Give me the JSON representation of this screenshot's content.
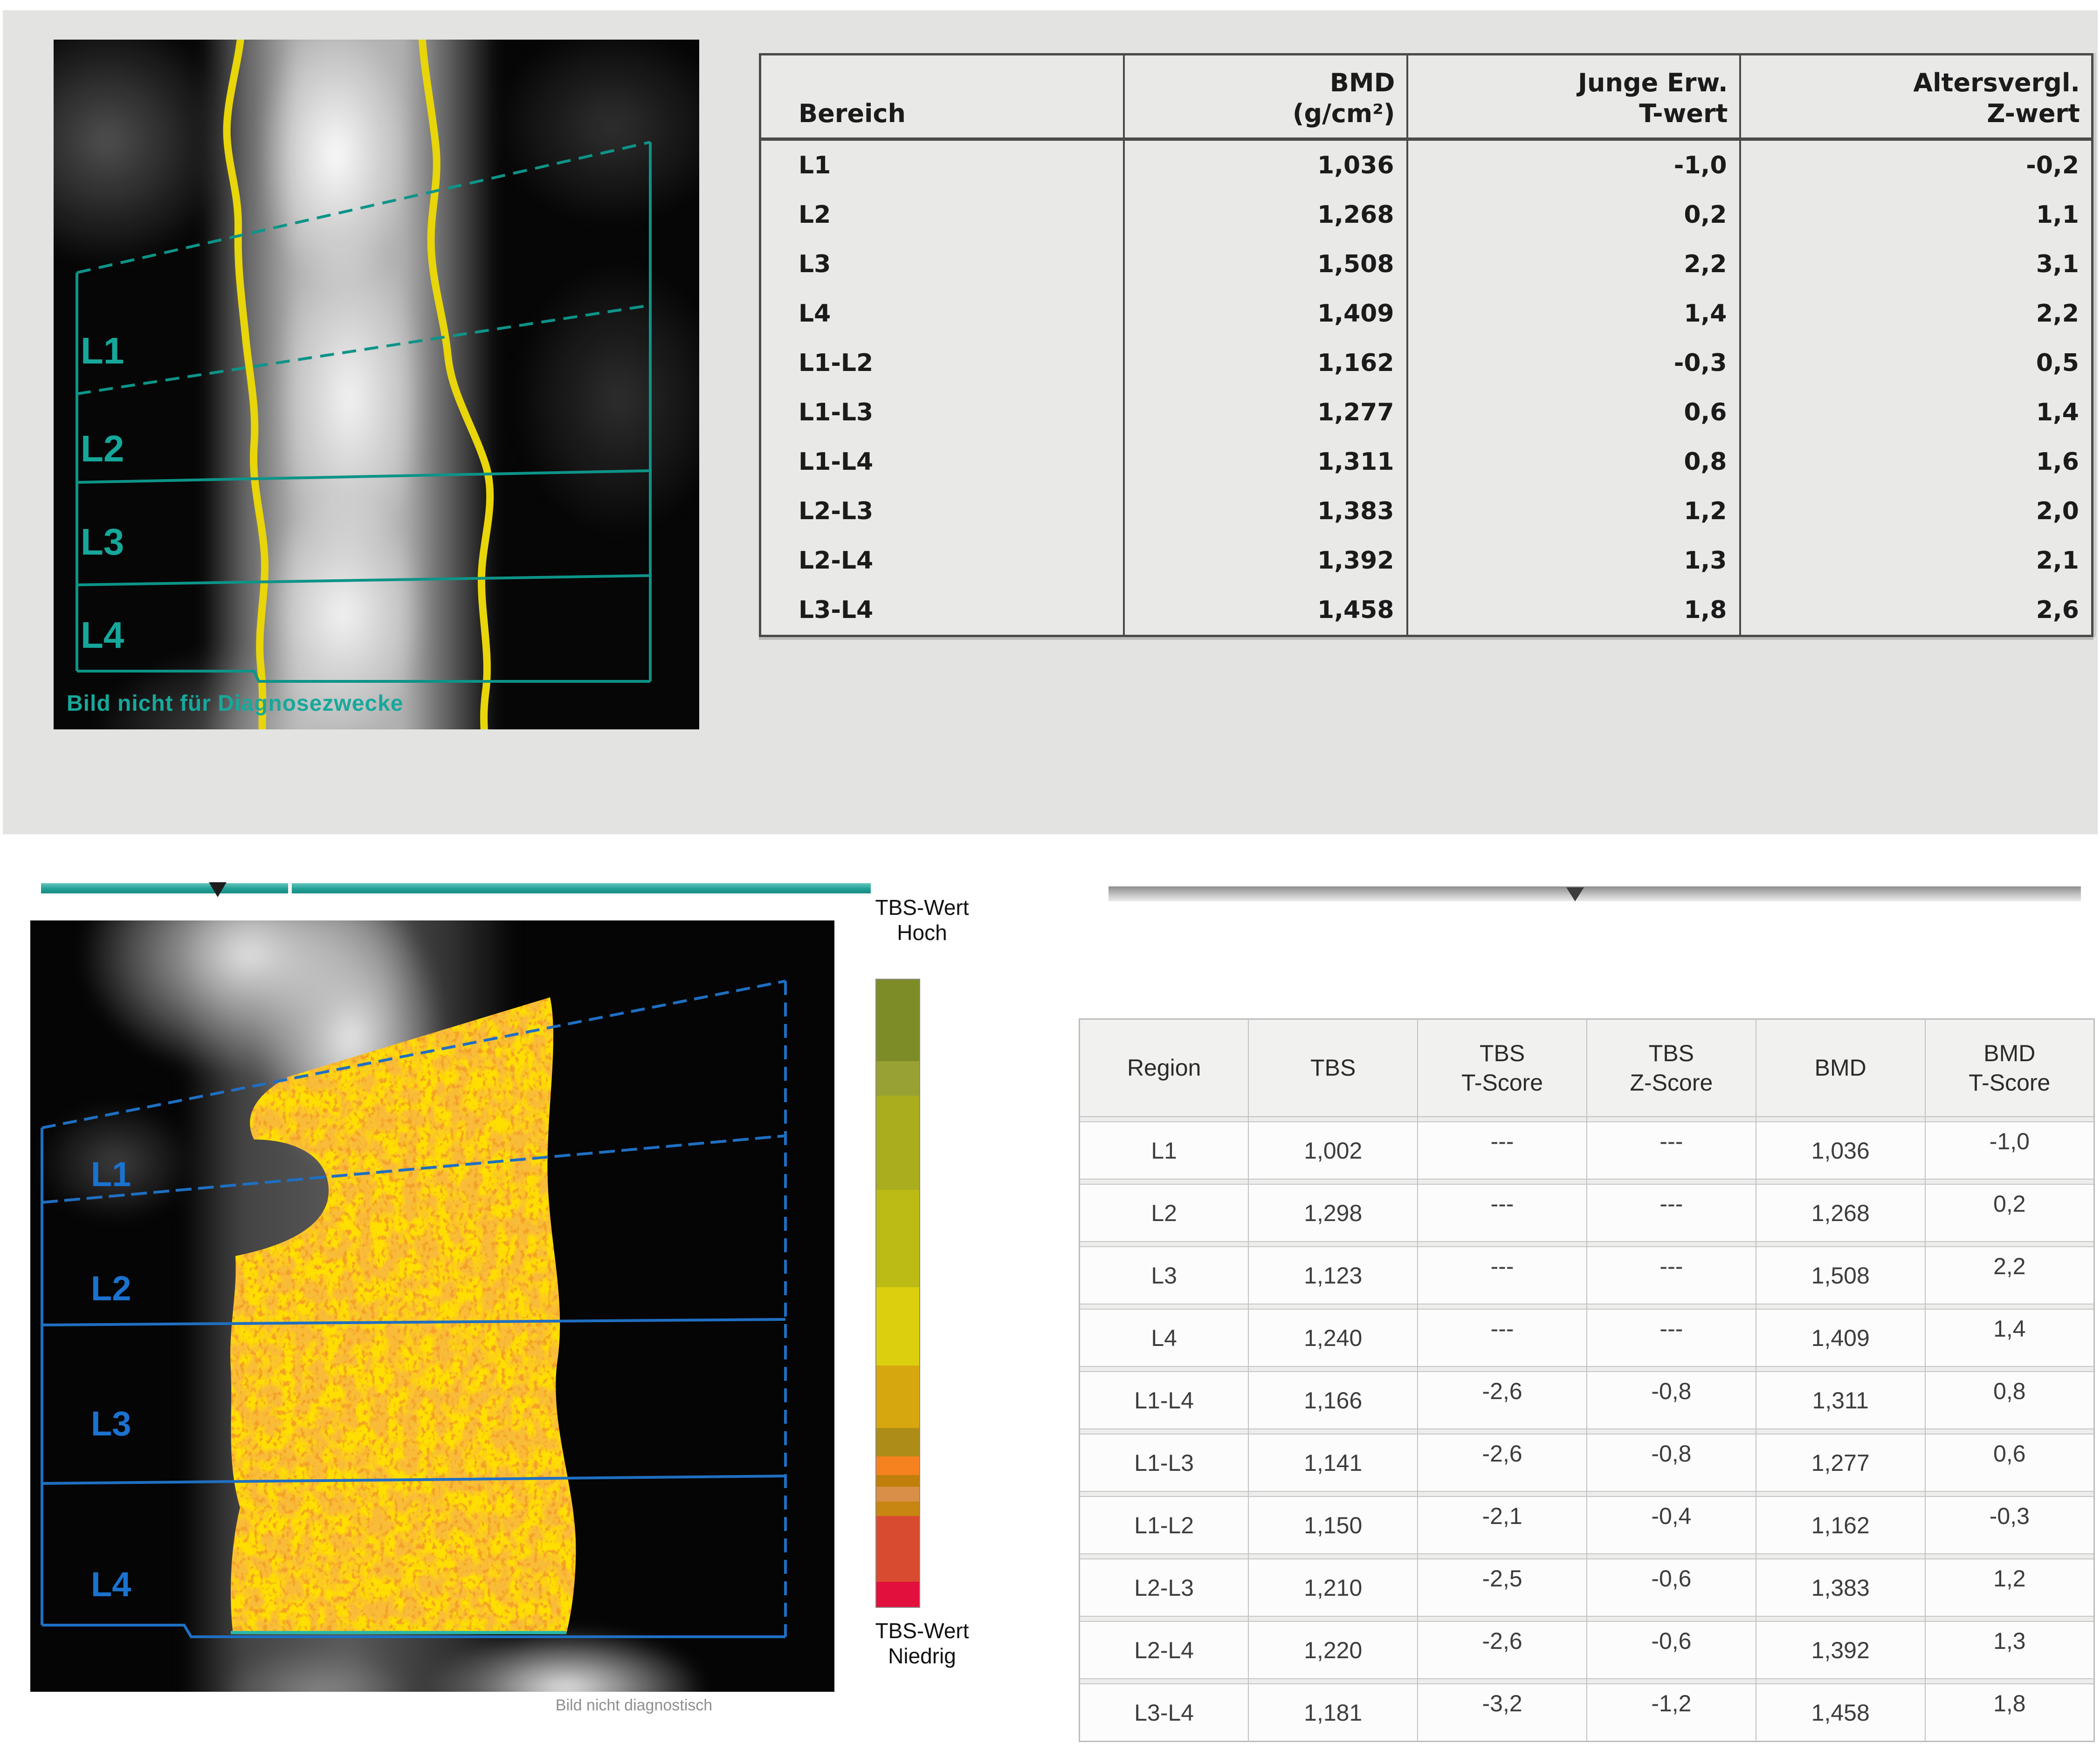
{
  "top_section": {
    "image": {
      "region_labels": [
        "L1",
        "L2",
        "L3",
        "L4"
      ],
      "caption": "Bild nicht für Diagnosezwecke"
    },
    "table": {
      "col_headers": [
        "Bereich",
        "BMD\n(g/cm²)",
        "Junge Erw.\nT-wert",
        "Altersvergl.\nZ-wert"
      ],
      "rows": [
        [
          "L1",
          "1,036",
          "-1,0",
          "-0,2"
        ],
        [
          "L2",
          "1,268",
          "0,2",
          "1,1"
        ],
        [
          "L3",
          "1,508",
          "2,2",
          "3,1"
        ],
        [
          "L4",
          "1,409",
          "1,4",
          "2,2"
        ],
        [
          "L1-L2",
          "1,162",
          "-0,3",
          "0,5"
        ],
        [
          "L1-L3",
          "1,277",
          "0,6",
          "1,4"
        ],
        [
          "L1-L4",
          "1,311",
          "0,8",
          "1,6"
        ],
        [
          "L2-L3",
          "1,383",
          "1,2",
          "2,0"
        ],
        [
          "L2-L4",
          "1,392",
          "1,3",
          "2,1"
        ],
        [
          "L3-L4",
          "1,458",
          "1,8",
          "2,6"
        ]
      ]
    }
  },
  "bottom_section": {
    "image": {
      "region_labels": [
        "L1",
        "L2",
        "L3",
        "L4"
      ],
      "caption": "Bild nicht diagnostisch"
    },
    "scale": {
      "label_high": "TBS-Wert\nHoch",
      "label_low": "TBS-Wert\nNiedrig",
      "segments": [
        {
          "color": "#7e8c28",
          "pct": 13
        },
        {
          "color": "#98a133",
          "pct": 5.5
        },
        {
          "color": "#a9ad1e",
          "pct": 15
        },
        {
          "color": "#bcbb15",
          "pct": 15.5
        },
        {
          "color": "#dcd00e",
          "pct": 12.5
        },
        {
          "color": "#d7a710",
          "pct": 10
        },
        {
          "color": "#ad8d18",
          "pct": 4.5
        },
        {
          "color": "#f5821f",
          "pct": 3
        },
        {
          "color": "#bf7f0a",
          "pct": 1.8
        },
        {
          "color": "#d98f47",
          "pct": 2.4
        },
        {
          "color": "#c78511",
          "pct": 2.3
        },
        {
          "color": "#d94b30",
          "pct": 10.5
        },
        {
          "color": "#e2103c",
          "pct": 4
        }
      ]
    },
    "table": {
      "col_headers": [
        "Region",
        "TBS",
        "TBS\nT-Score",
        "TBS\nZ-Score",
        "BMD",
        "BMD\nT-Score"
      ],
      "rows": [
        [
          "L1",
          "1,002",
          "---",
          "---",
          "1,036",
          "-1,0"
        ],
        [
          "L2",
          "1,298",
          "---",
          "---",
          "1,268",
          "0,2"
        ],
        [
          "L3",
          "1,123",
          "---",
          "---",
          "1,508",
          "2,2"
        ],
        [
          "L4",
          "1,240",
          "---",
          "---",
          "1,409",
          "1,4"
        ],
        [
          "L1-L4",
          "1,166",
          "-2,6",
          "-0,8",
          "1,311",
          "0,8"
        ],
        [
          "L1-L3",
          "1,141",
          "-2,6",
          "-0,8",
          "1,277",
          "0,6"
        ],
        [
          "L1-L2",
          "1,150",
          "-2,1",
          "-0,4",
          "1,162",
          "-0,3"
        ],
        [
          "L2-L3",
          "1,210",
          "-2,5",
          "-0,6",
          "1,383",
          "1,2"
        ],
        [
          "L2-L4",
          "1,220",
          "-2,6",
          "-0,6",
          "1,392",
          "1,3"
        ],
        [
          "L3-L4",
          "1,181",
          "-3,2",
          "-1,2",
          "1,458",
          "1,8"
        ]
      ]
    }
  },
  "colors": {
    "panel_gray": "#e3e3e1",
    "roi_teal": "#0d9488",
    "roi_blue": "#1f6fc2",
    "bone_contour_yellow": "#e8d50a",
    "tbs_overlay_yellow": "#ffdf00",
    "teal_bar": "#21a096",
    "label_teal": "#16a79b",
    "label_blue": "#1b72cf"
  }
}
